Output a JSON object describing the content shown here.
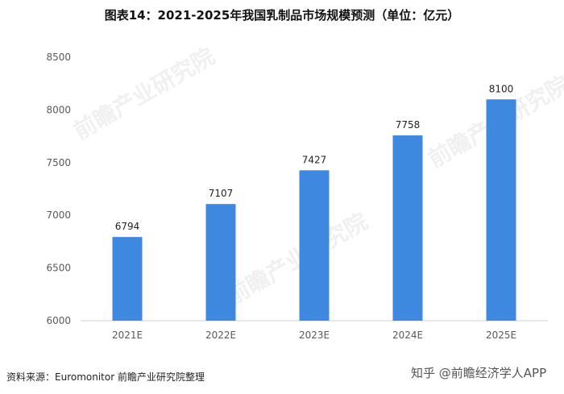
{
  "chart_data": {
    "type": "bar",
    "title": "图表14：2021-2025年我国乳制品市场规模预测（单位：亿元）",
    "categories": [
      "2021E",
      "2022E",
      "2023E",
      "2024E",
      "2025E"
    ],
    "values": [
      6794,
      7107,
      7427,
      7758,
      8100
    ],
    "ylim": [
      6000,
      8500
    ],
    "yticks": [
      6000,
      6500,
      7000,
      7500,
      8000,
      8500
    ],
    "grid": false,
    "legend": "none",
    "bar_color": "#3F88E0"
  },
  "footer": {
    "source": "资料来源：Euromonitor 前瞻产业研究院整理",
    "credit": "知乎 @前瞻经济学人APP"
  },
  "watermark": "前瞻产业研究院"
}
